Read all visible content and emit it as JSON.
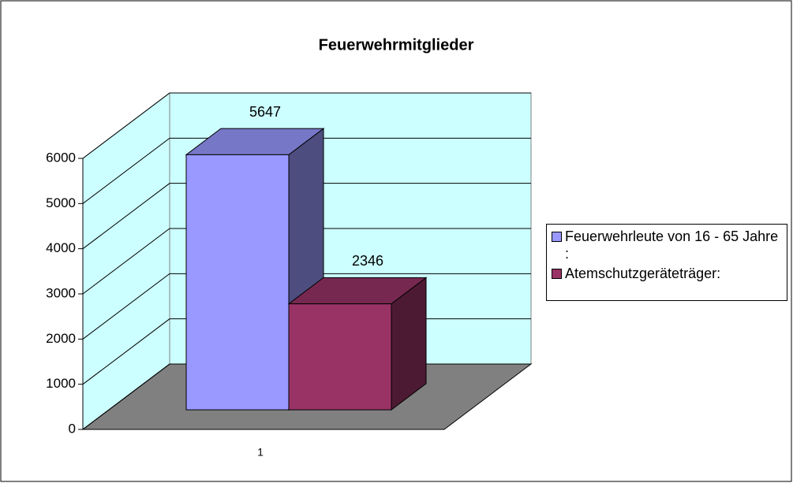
{
  "chart_data": {
    "type": "bar3d",
    "title": "Feuerwehrmitglieder",
    "categories": [
      "1"
    ],
    "series": [
      {
        "name": "Feuerwehrleute von 16 - 65 Jahre :",
        "color": "#9999ff",
        "values": [
          5647
        ]
      },
      {
        "name": "Atemschutzgeräteträger:",
        "color": "#993366",
        "values": [
          2346
        ]
      }
    ],
    "ylim": [
      0,
      6000
    ],
    "yticks": [
      0,
      1000,
      2000,
      3000,
      4000,
      5000,
      6000
    ],
    "grid": true,
    "legend": "right"
  }
}
